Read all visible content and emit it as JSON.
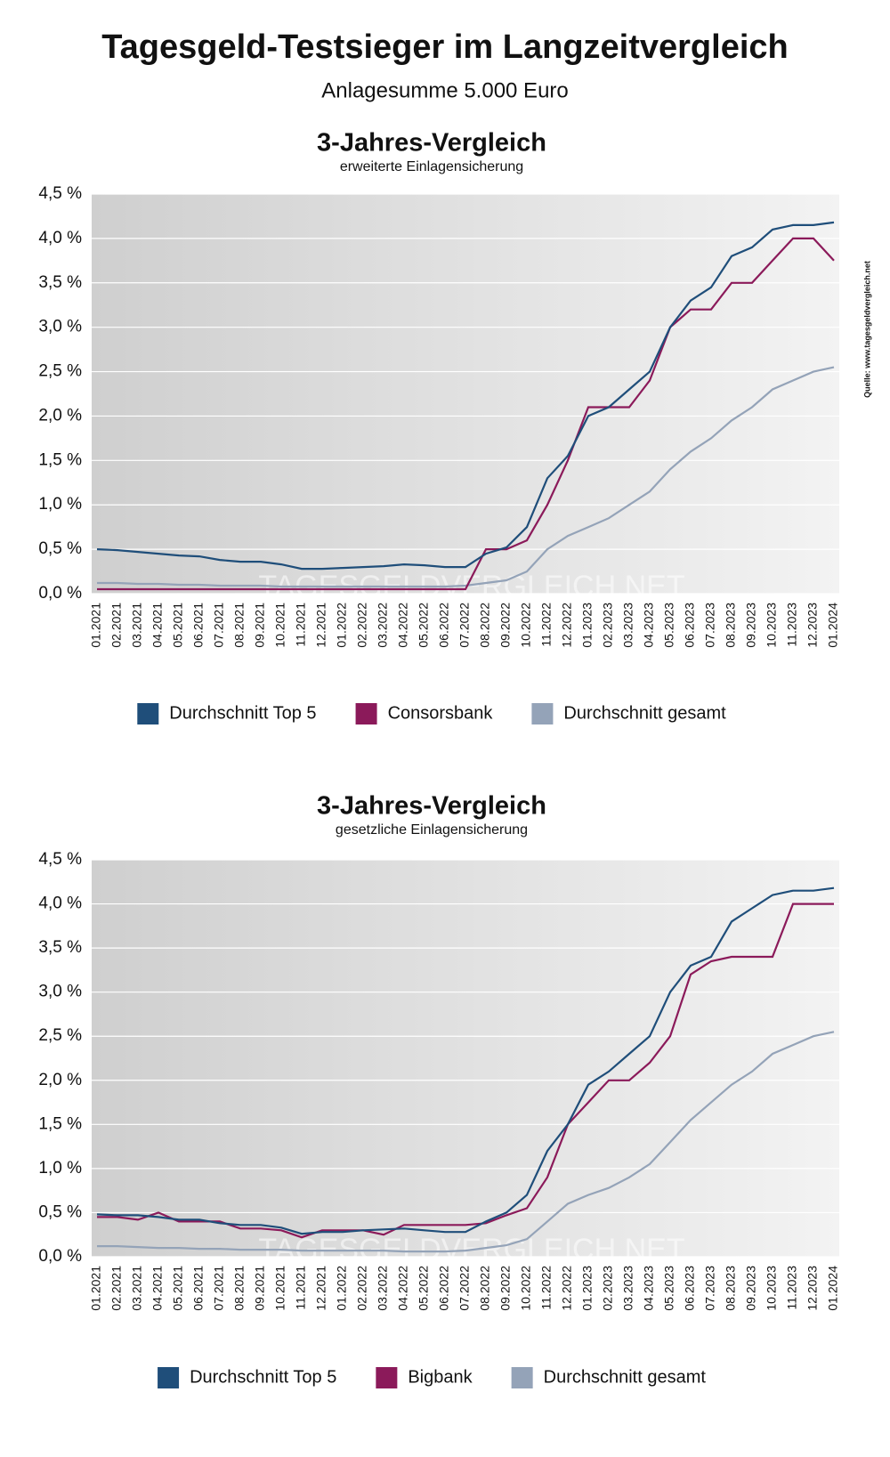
{
  "title": "Tagesgeld-Testsieger im Langzeitvergleich",
  "subtitle": "Anlagesumme 5.000 Euro",
  "source": "Quelle: www.tagesgeldvergleich.net",
  "watermark": "TAGESGELDVERGLEICH.NET",
  "chart_data": [
    {
      "type": "line",
      "title": "3-Jahres-Vergleich",
      "subtitle": "erweiterte Einlagensicherung",
      "categories": [
        "01.2021",
        "02.2021",
        "03.2021",
        "04.2021",
        "05.2021",
        "06.2021",
        "07.2021",
        "08.2021",
        "09.2021",
        "10.2021",
        "11.2021",
        "12.2021",
        "01.2022",
        "02.2022",
        "03.2022",
        "04.2022",
        "05.2022",
        "06.2022",
        "07.2022",
        "08.2022",
        "09.2022",
        "10.2022",
        "11.2022",
        "12.2022",
        "01.2023",
        "02.2023",
        "03.2023",
        "04.2023",
        "05.2023",
        "06.2023",
        "07.2023",
        "08.2023",
        "09.2023",
        "10.2023",
        "11.2023",
        "12.2023",
        "01.2024"
      ],
      "series": [
        {
          "name": "Durchschnitt Top 5",
          "color": "#1f4e7a",
          "values": [
            0.5,
            0.49,
            0.47,
            0.45,
            0.43,
            0.42,
            0.38,
            0.36,
            0.36,
            0.33,
            0.28,
            0.28,
            0.29,
            0.3,
            0.31,
            0.33,
            0.32,
            0.3,
            0.3,
            0.45,
            0.52,
            0.75,
            1.3,
            1.55,
            2.0,
            2.1,
            2.3,
            2.5,
            3.0,
            3.3,
            3.45,
            3.8,
            3.9,
            4.1,
            4.15,
            4.15,
            4.18
          ]
        },
        {
          "name": "Consorsbank",
          "color": "#8b1a5a",
          "values": [
            0.05,
            0.05,
            0.05,
            0.05,
            0.05,
            0.05,
            0.05,
            0.05,
            0.05,
            0.05,
            0.05,
            0.05,
            0.05,
            0.05,
            0.05,
            0.05,
            0.05,
            0.05,
            0.05,
            0.5,
            0.5,
            0.6,
            1.0,
            1.5,
            2.1,
            2.1,
            2.1,
            2.4,
            3.0,
            3.2,
            3.2,
            3.5,
            3.5,
            3.75,
            4.0,
            4.0,
            3.75
          ]
        },
        {
          "name": "Durchschnitt gesamt",
          "color": "#94a3b8",
          "values": [
            0.12,
            0.12,
            0.11,
            0.11,
            0.1,
            0.1,
            0.09,
            0.09,
            0.09,
            0.08,
            0.08,
            0.08,
            0.08,
            0.08,
            0.08,
            0.08,
            0.08,
            0.08,
            0.09,
            0.12,
            0.15,
            0.25,
            0.5,
            0.65,
            0.75,
            0.85,
            1.0,
            1.15,
            1.4,
            1.6,
            1.75,
            1.95,
            2.1,
            2.3,
            2.4,
            2.5,
            2.55
          ]
        }
      ],
      "ylim": [
        0,
        4.5
      ],
      "yticks": [
        {
          "value": 0,
          "label": "0,0 %"
        },
        {
          "value": 0.5,
          "label": "0,5 %"
        },
        {
          "value": 1,
          "label": "1,0 %"
        },
        {
          "value": 1.5,
          "label": "1,5 %"
        },
        {
          "value": 2,
          "label": "2,0 %"
        },
        {
          "value": 2.5,
          "label": "2,5 %"
        },
        {
          "value": 3,
          "label": "3,0 %"
        },
        {
          "value": 3.5,
          "label": "3,5 %"
        },
        {
          "value": 4,
          "label": "4,0 %"
        },
        {
          "value": 4.5,
          "label": "4,5 %"
        }
      ],
      "grid": true
    },
    {
      "type": "line",
      "title": "3-Jahres-Vergleich",
      "subtitle": "gesetzliche Einlagensicherung",
      "categories": [
        "01.2021",
        "02.2021",
        "03.2021",
        "04.2021",
        "05.2021",
        "06.2021",
        "07.2021",
        "08.2021",
        "09.2021",
        "10.2021",
        "11.2021",
        "12.2021",
        "01.2022",
        "02.2022",
        "03.2022",
        "04.2022",
        "05.2022",
        "06.2022",
        "07.2022",
        "08.2022",
        "09.2022",
        "10.2022",
        "11.2022",
        "12.2022",
        "01.2023",
        "02.2023",
        "03.2023",
        "04.2023",
        "05.2023",
        "06.2023",
        "07.2023",
        "08.2023",
        "09.2023",
        "10.2023",
        "11.2023",
        "12.2023",
        "01.2024"
      ],
      "series": [
        {
          "name": "Durchschnitt Top 5",
          "color": "#1f4e7a",
          "values": [
            0.48,
            0.47,
            0.47,
            0.45,
            0.42,
            0.42,
            0.38,
            0.36,
            0.36,
            0.33,
            0.26,
            0.28,
            0.28,
            0.3,
            0.31,
            0.32,
            0.3,
            0.28,
            0.28,
            0.4,
            0.5,
            0.7,
            1.2,
            1.5,
            1.95,
            2.1,
            2.3,
            2.5,
            3.0,
            3.3,
            3.4,
            3.8,
            3.95,
            4.1,
            4.15,
            4.15,
            4.18
          ]
        },
        {
          "name": "Bigbank",
          "color": "#8b1a5a",
          "values": [
            0.45,
            0.45,
            0.42,
            0.5,
            0.4,
            0.4,
            0.4,
            0.32,
            0.32,
            0.3,
            0.22,
            0.3,
            0.3,
            0.3,
            0.25,
            0.36,
            0.36,
            0.36,
            0.36,
            0.38,
            0.47,
            0.55,
            0.9,
            1.5,
            1.75,
            2.0,
            2.0,
            2.2,
            2.5,
            3.2,
            3.35,
            3.4,
            3.4,
            3.4,
            4.0,
            4.0,
            4.0
          ]
        },
        {
          "name": "Durchschnitt gesamt",
          "color": "#94a3b8",
          "values": [
            0.12,
            0.12,
            0.11,
            0.1,
            0.1,
            0.09,
            0.09,
            0.08,
            0.08,
            0.08,
            0.07,
            0.07,
            0.07,
            0.07,
            0.07,
            0.06,
            0.06,
            0.06,
            0.07,
            0.1,
            0.13,
            0.2,
            0.4,
            0.6,
            0.7,
            0.78,
            0.9,
            1.05,
            1.3,
            1.55,
            1.75,
            1.95,
            2.1,
            2.3,
            2.4,
            2.5,
            2.55
          ]
        }
      ],
      "ylim": [
        0,
        4.5
      ],
      "yticks": [
        {
          "value": 0,
          "label": "0,0 %"
        },
        {
          "value": 0.5,
          "label": "0,5 %"
        },
        {
          "value": 1,
          "label": "1,0 %"
        },
        {
          "value": 1.5,
          "label": "1,5 %"
        },
        {
          "value": 2,
          "label": "2,0 %"
        },
        {
          "value": 2.5,
          "label": "2,5 %"
        },
        {
          "value": 3,
          "label": "3,0 %"
        },
        {
          "value": 3.5,
          "label": "3,5 %"
        },
        {
          "value": 4,
          "label": "4,0 %"
        },
        {
          "value": 4.5,
          "label": "4,5 %"
        }
      ],
      "grid": true
    }
  ]
}
